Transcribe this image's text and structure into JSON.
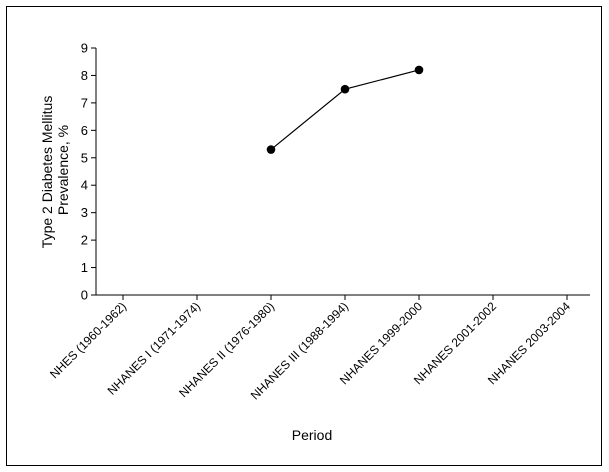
{
  "chart_data": {
    "type": "line",
    "xlabel": "Period",
    "ylabel_lines": [
      "Type 2 Diabetes Mellitus",
      "Prevalence, %"
    ],
    "categories": [
      "NHES (1960-1962)",
      "NHANES I (1971-1974)",
      "NHANES II (1976-1980)",
      "NHANES III (1988-1994)",
      "NHANES 1999-2000",
      "NHANES 2001-2002",
      "NHANES 2003-2004"
    ],
    "series": [
      {
        "values": [
          null,
          null,
          5.3,
          7.5,
          8.2,
          null,
          null
        ]
      }
    ],
    "ylim": [
      0,
      9
    ],
    "yticks": [
      0,
      1,
      2,
      3,
      4,
      5,
      6,
      7,
      8,
      9
    ],
    "grid": false
  }
}
